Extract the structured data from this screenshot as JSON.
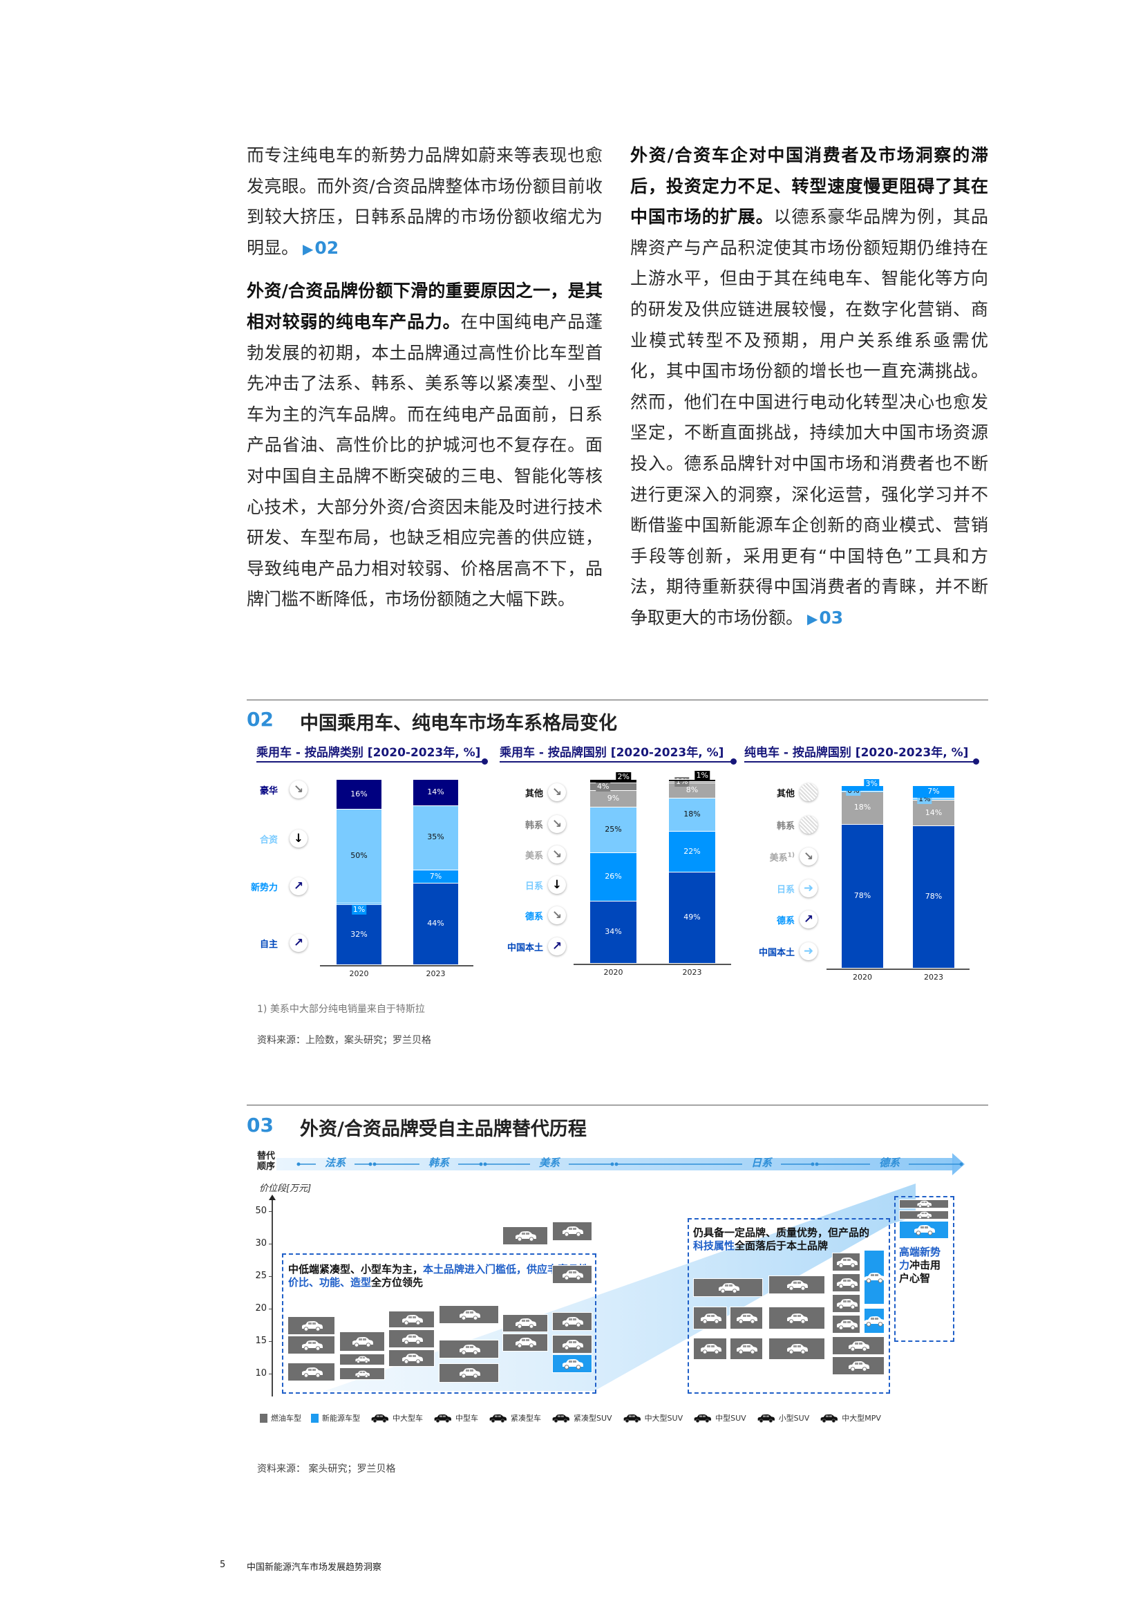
{
  "body": {
    "left_col": {
      "p1": "而专注纯电车的新势力品牌如蔚来等表现也愈发亮眼。而外资/合资品牌整体市场份额目前收到较大挤压，日韩系品牌的市场份额收缩尤为明显。",
      "p1_ref": "02",
      "p2_bold": "外资/合资品牌份额下滑的重要原因之一，是其相对较弱的纯电车产品力。",
      "p2": "在中国纯电产品蓬勃发展的初期，本土品牌通过高性价比车型首先冲击了法系、韩系、美系等以紧凑型、小型车为主的汽车品牌。而在纯电产品面前，日系产品省油、高性价比的护城河也不复存在。面对中国自主品牌不断突破的三电、智能化等核心技术，大部分外资/合资因未能及时进行技术研发、车型布局，也缺乏相应完善的供应链，导致纯电产品力相对较弱、价格居高不下，品牌门槛不断降低，市场份额随之大幅下跌。"
    },
    "right_col": {
      "p1_bold": "外资/合资车企对中国消费者及市场洞察的滞后，投资定力不足、转型速度慢更阻碍了其在中国市场的扩展。",
      "p1": "以德系豪华品牌为例，其品牌资产与产品积淀使其市场份额短期仍维持在上游水平，但由于其在纯电车、智能化等方向的研发及供应链进展较慢，在数字化营销、商业模式转型不及预期，用户关系维系亟需优化，其中国市场份额的增长也一直充满挑战。然而，他们在中国进行电动化转型决心也愈发坚定，不断直面挑战，持续加大中国市场资源投入。德系品牌针对中国市场和消费者也不断进行更深入的洞察，深化运营，强化学习并不断借鉴中国新能源车企创新的商业模式、营销手段等创新，采用更有“中国特色”工具和方法，期待重新获得中国消费者的青睐，并不断争取更大的市场份额。",
      "p1_ref": "03"
    },
    "ref_marker": "▶"
  },
  "exhibit02": {
    "number": "02",
    "title": "中国乘用车、纯电车市场车系格局变化",
    "footnote": "1) 美系中大部分纯电销量来自于特斯拉",
    "source": "资料来源：上险数，案头研究；罗兰贝格"
  },
  "chart_data": [
    {
      "type": "bar",
      "stacked": true,
      "title": "乘用车 - 按品牌类别 [2020-2023年, %]",
      "categories": [
        "2020",
        "2023"
      ],
      "series": [
        {
          "name": "自主",
          "values": [
            32,
            44
          ],
          "color": "#0047BB",
          "label_color": "#0047BB",
          "trend": "up-right"
        },
        {
          "name": "新势力",
          "values": [
            1,
            7
          ],
          "color": "#0095FF",
          "label_color": "#0095FF",
          "trend": "up-right"
        },
        {
          "name": "合资",
          "values": [
            50,
            35
          ],
          "color": "#7ACBFF",
          "label_color": "#7ACBFF",
          "trend": "down"
        },
        {
          "name": "豪华",
          "values": [
            16,
            14
          ],
          "color": "#000080",
          "label_color": "#000080",
          "trend": "down-right"
        }
      ]
    },
    {
      "type": "bar",
      "stacked": true,
      "title": "乘用车 - 按品牌国别 [2020-2023年, %]",
      "categories": [
        "2020",
        "2023"
      ],
      "series": [
        {
          "name": "中国本土",
          "values": [
            34,
            49
          ],
          "color": "#0047BB",
          "label_color": "#0047BB",
          "trend": "up-right"
        },
        {
          "name": "德系",
          "values": [
            26,
            22
          ],
          "color": "#0095FF",
          "label_color": "#0095FF",
          "trend": "down-right"
        },
        {
          "name": "日系",
          "values": [
            25,
            18
          ],
          "color": "#7ACBFF",
          "label_color": "#7ACBFF",
          "trend": "down"
        },
        {
          "name": "美系",
          "values": [
            9,
            8
          ],
          "color": "#A6A6A6",
          "label_color": "#A6A6A6",
          "trend": "down-right"
        },
        {
          "name": "韩系",
          "values": [
            4,
            1
          ],
          "color": "#808080",
          "label_color": "#808080",
          "trend": "down-right"
        },
        {
          "name": "其他",
          "values": [
            2,
            1
          ],
          "color": "#000000",
          "label_color": "#111111",
          "trend": "down-right"
        }
      ]
    },
    {
      "type": "bar",
      "stacked": true,
      "title": "纯电车 - 按品牌国别 [2020-2023年, %]",
      "categories": [
        "2020",
        "2023"
      ],
      "series": [
        {
          "name": "中国本土",
          "values": [
            78,
            78
          ],
          "color": "#0047BB",
          "label_color": "#0047BB",
          "trend": "right"
        },
        {
          "name": "美系",
          "sup": "1)",
          "values": [
            18,
            14
          ],
          "color": "#A6A6A6",
          "label_color": "#A6A6A6",
          "trend": "down-right"
        },
        {
          "name": "日系",
          "values": [
            0,
            1
          ],
          "color": "#7ACBFF",
          "label_color": "#7ACBFF",
          "trend": "right"
        },
        {
          "name": "德系",
          "values": [
            3,
            7
          ],
          "color": "#0095FF",
          "label_color": "#0095FF",
          "trend": "up-right"
        },
        {
          "name": "韩系",
          "values": [
            null,
            null
          ],
          "color": "#808080",
          "label_color": "#808080",
          "trend": "n/a"
        },
        {
          "name": "其他",
          "values": [
            null,
            null
          ],
          "color": "#000000",
          "label_color": "#111111",
          "trend": "n/a"
        }
      ]
    }
  ],
  "exhibit03": {
    "number": "03",
    "title": "外资/合资品牌受自主品牌替代历程",
    "order_label": "替代\n顺序",
    "order": [
      "法系",
      "韩系",
      "美系",
      "日系",
      "德系"
    ],
    "y_axis_label": "价位段[万元]",
    "y_ticks": [
      "50",
      "30",
      "25",
      "20",
      "15",
      "10"
    ],
    "annotations": {
      "a1_black1": "中低端紧凑型、小型车为主，",
      "a1_blue1": "本土品牌进入门槛低，供应丰富且性价比、功能、造型",
      "a1_black2": "全方位领先",
      "a2_black1": "仍具备一定品牌、质量优势，但产品的",
      "a2_blue": "科技属性",
      "a2_black2": "全面落后于本土品牌",
      "a3_blue": "高端新势力",
      "a3_black": "冲击用户心智"
    },
    "legend": [
      {
        "label": "燃油车型",
        "icon": "swatch",
        "color": "#6E6E6E"
      },
      {
        "label": "新能源车型",
        "icon": "swatch",
        "color": "#1D9BF0"
      },
      {
        "label": "中大型车",
        "icon": "sedan-large-icon"
      },
      {
        "label": "中型车",
        "icon": "sedan-mid-icon"
      },
      {
        "label": "紧凑型车",
        "icon": "compact-car-icon"
      },
      {
        "label": "紧凑型SUV",
        "icon": "compact-suv-icon"
      },
      {
        "label": "中大型SUV",
        "icon": "large-suv-icon"
      },
      {
        "label": "中型SUV",
        "icon": "mid-suv-icon"
      },
      {
        "label": "小型SUV",
        "icon": "small-suv-icon"
      },
      {
        "label": "中大型MPV",
        "icon": "mpv-icon"
      }
    ],
    "source": "资料来源：  案头研究；罗兰贝格"
  },
  "footer": {
    "page": "5",
    "title": "中国新能源汽车市场发展趋势洞察"
  },
  "colors": {
    "accent": "#2F8FD8",
    "navy": "#16167A",
    "dashed": "#1F5FC8"
  }
}
